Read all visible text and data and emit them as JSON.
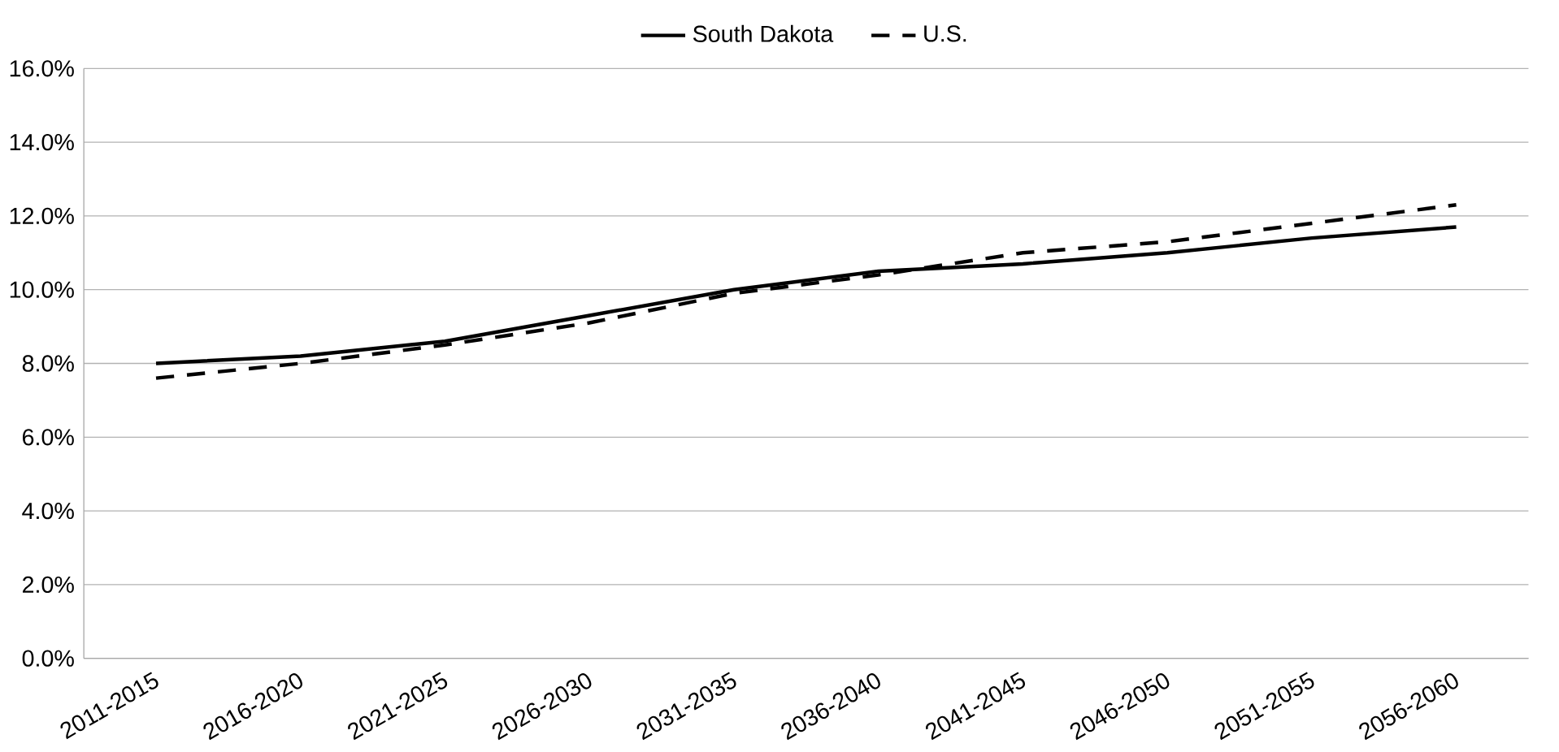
{
  "chart_data": {
    "type": "line",
    "categories": [
      "2011-2015",
      "2016-2020",
      "2021-2025",
      "2026-2030",
      "2031-2035",
      "2036-2040",
      "2041-2045",
      "2046-2050",
      "2051-2055",
      "2056-2060"
    ],
    "series": [
      {
        "name": "South Dakota",
        "color": "#000000",
        "line_style": "solid",
        "values": [
          8.0,
          8.2,
          8.6,
          9.3,
          10.0,
          10.5,
          10.7,
          11.0,
          11.4,
          11.7
        ]
      },
      {
        "name": "U.S.",
        "color": "#000000",
        "line_style": "dashed",
        "values": [
          7.6,
          8.0,
          8.5,
          9.1,
          9.9,
          10.4,
          11.0,
          11.3,
          11.8,
          12.3
        ]
      }
    ],
    "ylim": [
      0,
      16
    ],
    "yticks": [
      {
        "value": 0,
        "label": "0.0%"
      },
      {
        "value": 2,
        "label": "2.0%"
      },
      {
        "value": 4,
        "label": "4.0%"
      },
      {
        "value": 6,
        "label": "6.0%"
      },
      {
        "value": 8,
        "label": "8.0%"
      },
      {
        "value": 10,
        "label": "10.0%"
      },
      {
        "value": 12,
        "label": "12.0%"
      },
      {
        "value": 14,
        "label": "14.0%"
      },
      {
        "value": 16,
        "label": "16.0%"
      }
    ],
    "grid": "y",
    "legend": "top",
    "marker": "none"
  }
}
